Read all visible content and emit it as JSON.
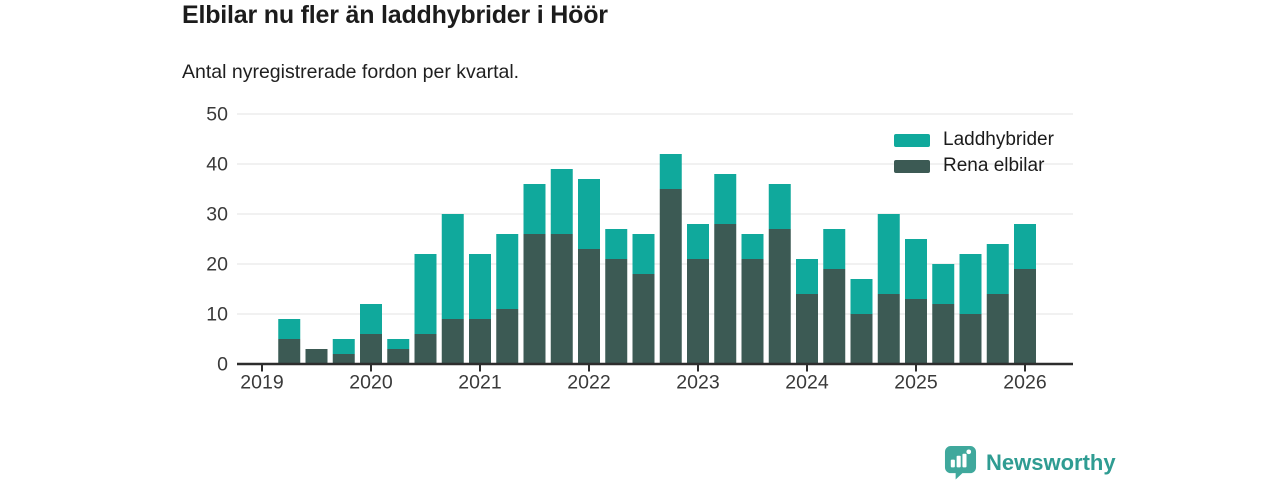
{
  "header": {
    "title": "Elbilar nu fler än laddhybrider i Höör",
    "subtitle": "Antal nyregistrerade fordon per kvartal."
  },
  "legend": {
    "items": [
      {
        "label": "Laddhybrider",
        "color": "#10a99c"
      },
      {
        "label": "Rena elbilar",
        "color": "#3c5a54"
      }
    ]
  },
  "chart_data": {
    "type": "bar",
    "stacked": true,
    "title": "Elbilar nu fler än laddhybrider i Höör",
    "subtitle": "Antal nyregistrerade fordon per kvartal.",
    "xlabel": "",
    "ylabel": "",
    "ylim": [
      0,
      50
    ],
    "yticks": [
      0,
      10,
      20,
      30,
      40,
      50
    ],
    "grid": true,
    "legend_position": "top-right",
    "x": [
      "2019 Q1",
      "2019 Q2",
      "2019 Q3",
      "2019 Q4",
      "2020 Q1",
      "2020 Q2",
      "2020 Q3",
      "2020 Q4",
      "2021 Q1",
      "2021 Q2",
      "2021 Q3",
      "2021 Q4",
      "2022 Q1",
      "2022 Q2",
      "2022 Q3",
      "2022 Q4",
      "2023 Q1",
      "2023 Q2",
      "2023 Q3",
      "2023 Q4",
      "2024 Q1",
      "2024 Q2",
      "2024 Q3",
      "2024 Q4",
      "2025 Q1",
      "2025 Q2",
      "2025 Q3",
      "2025 Q4",
      "2026 Q1"
    ],
    "series": [
      {
        "name": "Rena elbilar",
        "color": "#3c5a54",
        "values": [
          0,
          5,
          3,
          2,
          6,
          3,
          6,
          9,
          9,
          11,
          26,
          26,
          23,
          21,
          18,
          35,
          21,
          28,
          21,
          27,
          14,
          19,
          10,
          14,
          13,
          12,
          10,
          14,
          19
        ]
      },
      {
        "name": "Laddhybrider",
        "color": "#10a99c",
        "values": [
          0,
          4,
          0,
          3,
          6,
          2,
          16,
          21,
          13,
          15,
          10,
          13,
          14,
          6,
          8,
          7,
          7,
          10,
          5,
          9,
          7,
          8,
          7,
          16,
          12,
          8,
          12,
          10,
          9
        ]
      }
    ],
    "xticks": [
      {
        "label": "2019",
        "index": 0
      },
      {
        "label": "2020",
        "index": 4
      },
      {
        "label": "2021",
        "index": 8
      },
      {
        "label": "2022",
        "index": 12
      },
      {
        "label": "2023",
        "index": 16
      },
      {
        "label": "2024",
        "index": 20
      },
      {
        "label": "2025",
        "index": 24
      },
      {
        "label": "2026",
        "index": 28
      }
    ],
    "axis_color": "#2d2d2d",
    "grid_color": "#e3e3e3",
    "tick_label_color": "#3a3a3a"
  },
  "footer": {
    "brand": "Newsworthy",
    "brand_color": "#2f9c92",
    "icon_color": "#3fa89c"
  }
}
